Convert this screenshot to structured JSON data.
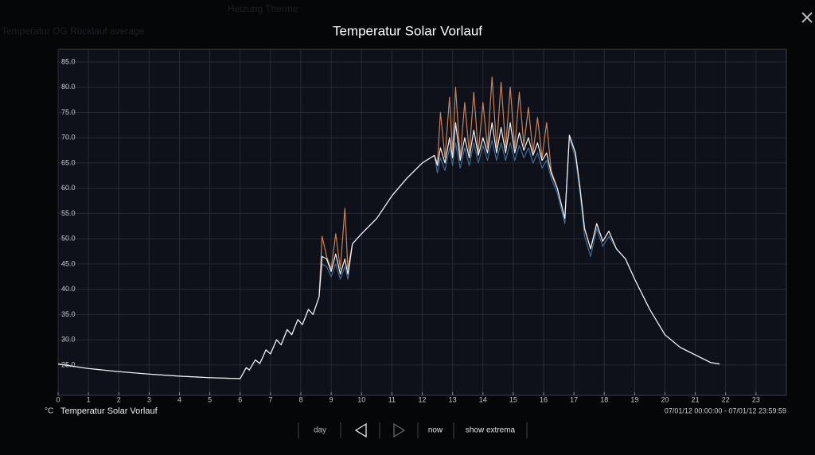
{
  "background": {
    "items": [
      "Heizung Therme",
      "Temperatur OG Rücklauf average"
    ]
  },
  "chart_data": {
    "type": "line",
    "title": "Temperatur Solar Vorlauf",
    "unit": "°C",
    "x": [
      0,
      1,
      2,
      3,
      4,
      5,
      6,
      6.2,
      6.3,
      6.5,
      6.65,
      6.85,
      7.0,
      7.2,
      7.35,
      7.55,
      7.7,
      7.9,
      8.05,
      8.25,
      8.4,
      8.6,
      8.7,
      8.85,
      9.0,
      9.15,
      9.3,
      9.45,
      9.55,
      9.7,
      10,
      10.5,
      11,
      11.5,
      12,
      12.4,
      12.5,
      12.6,
      12.75,
      12.9,
      13.0,
      13.1,
      13.25,
      13.4,
      13.55,
      13.7,
      13.85,
      14.0,
      14.15,
      14.3,
      14.45,
      14.6,
      14.75,
      14.9,
      15.05,
      15.2,
      15.35,
      15.5,
      15.65,
      15.8,
      15.95,
      16.1,
      16.25,
      16.45,
      16.7,
      16.85,
      17.05,
      17.2,
      17.35,
      17.55,
      17.75,
      17.95,
      18.15,
      18.4,
      18.7,
      19,
      19.5,
      20,
      20.5,
      21,
      21.5,
      21.8
    ],
    "series": [
      {
        "color": "#c9825a",
        "values": [
          25.2,
          24.3,
          23.7,
          23.2,
          22.8,
          22.5,
          22.3,
          24.5,
          24,
          26,
          25.3,
          28,
          27.2,
          30,
          29,
          32,
          31,
          34,
          33,
          36,
          35,
          38.5,
          50.5,
          46.5,
          44,
          51,
          44,
          56,
          44,
          49,
          51,
          54,
          58.5,
          62,
          65,
          66.5,
          65,
          75,
          66,
          78,
          67,
          80,
          66,
          77,
          67,
          79,
          67,
          77,
          68,
          82,
          68,
          81,
          68,
          80,
          68,
          79,
          68.5,
          76,
          67,
          74,
          66,
          73,
          63.5,
          60,
          54,
          70.5,
          67,
          60,
          52,
          48,
          53,
          49.5,
          51.5,
          48,
          46,
          42,
          36,
          31,
          28.5,
          27,
          25.5,
          25.2
        ]
      },
      {
        "color": "#3f6c99",
        "values": [
          25.2,
          24.3,
          23.7,
          23.2,
          22.8,
          22.5,
          22.3,
          24.5,
          24,
          26,
          25.3,
          28,
          27.2,
          30,
          29,
          32,
          31,
          34,
          33,
          36,
          35,
          38.5,
          45,
          44.5,
          42.5,
          45,
          42,
          44.5,
          42,
          49,
          51,
          54,
          58.5,
          62,
          65,
          66.5,
          63,
          66,
          63.5,
          68,
          64.5,
          69,
          64,
          68,
          64.5,
          69,
          65,
          68.5,
          65.5,
          69.5,
          65.5,
          69,
          65.5,
          69,
          65.5,
          68.5,
          66,
          68,
          65,
          67,
          64,
          65.5,
          62,
          59,
          53,
          70,
          66,
          59,
          50.5,
          46.5,
          52,
          48.5,
          50.5,
          48,
          46,
          42,
          36,
          31,
          28.5,
          27,
          25.5,
          25.2
        ]
      },
      {
        "name": "Temperatur Solar Vorlauf",
        "color": "#f2f2f2",
        "values": [
          25.2,
          24.3,
          23.7,
          23.2,
          22.8,
          22.5,
          22.3,
          24.5,
          24,
          26,
          25.3,
          28,
          27.2,
          30,
          29,
          32,
          31,
          34,
          33,
          36,
          35,
          38.5,
          46.5,
          46,
          43.5,
          47,
          43,
          46,
          43,
          49,
          51,
          54,
          58.5,
          62,
          65,
          66.5,
          64.5,
          68,
          65,
          70,
          66,
          73,
          65.5,
          70,
          66,
          71.5,
          66.5,
          70,
          67,
          73,
          67,
          72,
          67,
          73,
          67,
          71,
          67.5,
          70,
          66.5,
          69,
          65.5,
          67,
          63,
          60,
          54,
          70.5,
          67,
          60,
          52,
          48,
          53,
          49.5,
          51.5,
          48,
          46,
          42,
          36,
          31,
          28.5,
          27,
          25.5,
          25.2
        ]
      }
    ],
    "xlim": [
      0,
      24
    ],
    "xticks": [
      0,
      1,
      2,
      3,
      4,
      5,
      6,
      7,
      8,
      9,
      10,
      11,
      12,
      13,
      14,
      15,
      16,
      17,
      18,
      19,
      20,
      21,
      22,
      23
    ],
    "ylim": [
      19,
      87.5
    ],
    "yticks": [
      {
        "value": 25,
        "label": "25.0"
      },
      {
        "value": 30,
        "label": "30.0"
      },
      {
        "value": 35,
        "label": "35.0"
      },
      {
        "value": 40,
        "label": "40.0"
      },
      {
        "value": 45,
        "label": "45.0"
      },
      {
        "value": 50,
        "label": "50.0"
      },
      {
        "value": 55,
        "label": "55.0"
      },
      {
        "value": 60,
        "label": "60.0"
      },
      {
        "value": 65,
        "label": "65.0"
      },
      {
        "value": 70,
        "label": "70.0"
      },
      {
        "value": 75,
        "label": "75.0"
      },
      {
        "value": 80,
        "label": "80.0"
      },
      {
        "value": 85,
        "label": "85.0"
      }
    ],
    "grid": true,
    "date_range": "07/01/12 00:00:00 - 07/01/12 23:59:59"
  },
  "controls": {
    "day": "day",
    "now": "now",
    "show_extrema": "show extrema"
  }
}
